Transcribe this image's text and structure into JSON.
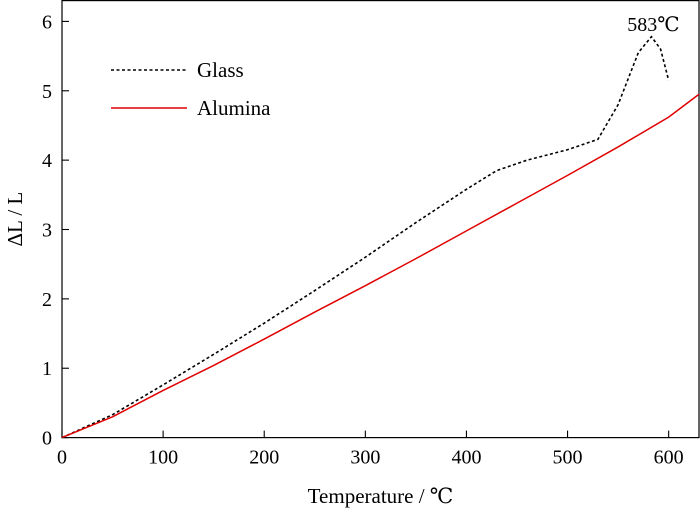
{
  "chart_data": {
    "type": "line",
    "xlabel": "Temperature / ℃",
    "ylabel": "ΔL / L",
    "xlim": [
      0,
      630
    ],
    "ylim": [
      0,
      6.3
    ],
    "xticks": [
      0,
      100,
      200,
      300,
      400,
      500,
      600
    ],
    "yticks": [
      0,
      1,
      2,
      3,
      4,
      5,
      6
    ],
    "xtick_labels": [
      "0",
      "100",
      "200",
      "300",
      "400",
      "500",
      "600"
    ],
    "ytick_labels": [
      "0",
      "1",
      "2",
      "3",
      "4",
      "5",
      "6"
    ],
    "grid": false,
    "legend_position": "top-left",
    "annotations": [
      {
        "text": "583℃",
        "x": 583,
        "y": 5.85
      }
    ],
    "series": [
      {
        "name": "Glass",
        "color": "#000000",
        "style": "dotted",
        "x": [
          0,
          50,
          100,
          150,
          200,
          250,
          300,
          350,
          400,
          430,
          460,
          500,
          530,
          550,
          570,
          583,
          592,
          600
        ],
        "y": [
          0,
          0.33,
          0.76,
          1.2,
          1.65,
          2.12,
          2.6,
          3.1,
          3.58,
          3.85,
          4.0,
          4.15,
          4.3,
          4.8,
          5.55,
          5.78,
          5.6,
          5.15
        ]
      },
      {
        "name": "Alumina",
        "color": "#e00000",
        "style": "solid",
        "x": [
          0,
          50,
          100,
          150,
          200,
          250,
          300,
          350,
          400,
          450,
          500,
          550,
          600,
          630
        ],
        "y": [
          0,
          0.3,
          0.68,
          1.04,
          1.42,
          1.81,
          2.19,
          2.58,
          2.98,
          3.38,
          3.78,
          4.19,
          4.62,
          4.95
        ]
      }
    ]
  }
}
